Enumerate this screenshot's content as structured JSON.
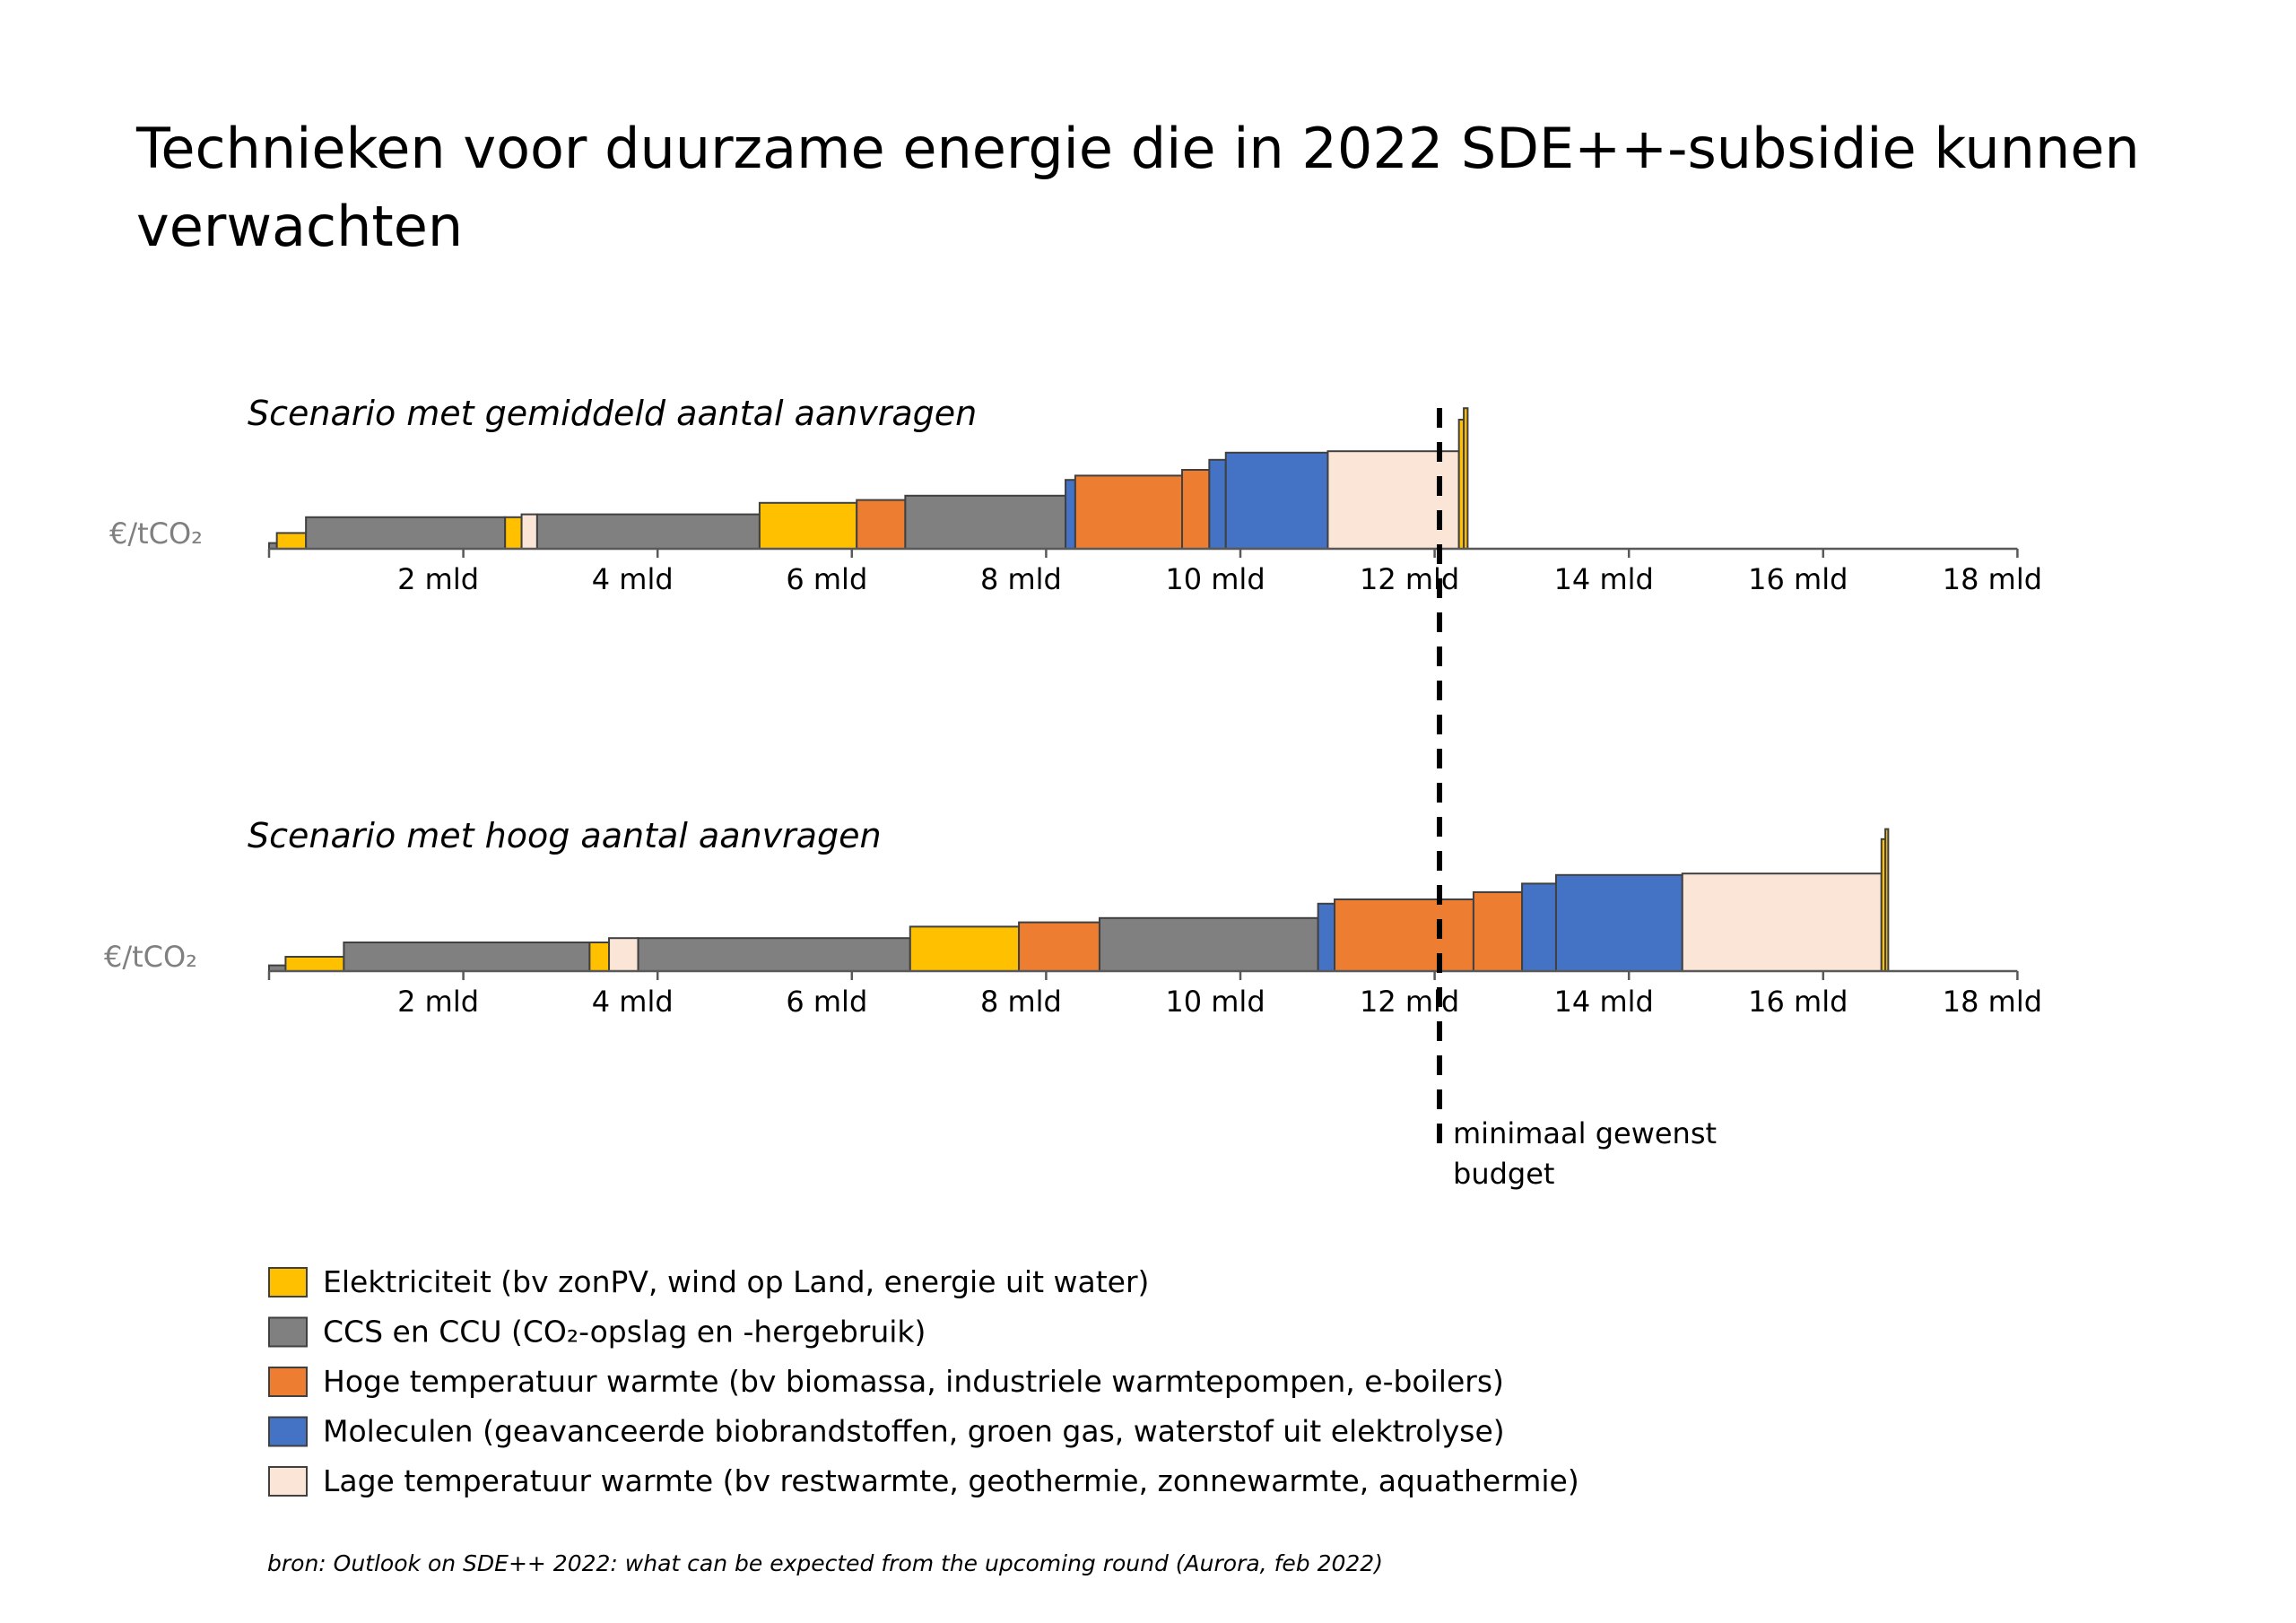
{
  "title": "Technieken voor duurzame energie die in 2022 SDE++-subsidie kunnen verwachten",
  "title_lines": [
    "Technieken voor duurzame energie die in 2022 SDE++-subsidie kunnen",
    "verwachten"
  ],
  "budget_label": [
    "minimaal gewenst",
    "budget"
  ],
  "source": "bron: Outlook on SDE++ 2022: what can be expected from the upcoming round (Aurora, feb 2022)",
  "colors": {
    "elektriciteit": "#FFC000",
    "ccs": "#808080",
    "hoge": "#ED7D31",
    "moleculen": "#4472C4",
    "lage": "#FBE5D6"
  },
  "chart_data": {
    "type": "bar",
    "subtype": "cost-supply-curve",
    "xunit": "mld",
    "xlim": [
      0,
      18
    ],
    "xticks": [
      2,
      4,
      6,
      8,
      10,
      12,
      14,
      16,
      18
    ],
    "xtick_labels": [
      "2 mld",
      "4 mld",
      "6 mld",
      "8 mld",
      "10 mld",
      "12 mld",
      "14 mld",
      "16 mld",
      "18 mld"
    ],
    "ylabel": "€/tCO₂",
    "budget_line_x": 12.05,
    "legend": [
      {
        "key": "elektriciteit",
        "label": "Elektriciteit (bv zonPV, wind op Land, energie uit water)"
      },
      {
        "key": "ccs",
        "label": "CCS en CCU (CO₂-opslag en -hergebruik)"
      },
      {
        "key": "hoge",
        "label": "Hoge temperatuur warmte (bv biomassa, industriele warmtepompen, e-boilers)"
      },
      {
        "key": "moleculen",
        "label": "Moleculen (geavanceerde biobrandstoffen, groen gas, waterstof uit elektrolyse)"
      },
      {
        "key": "lage",
        "label": "Lage temperatuur warmte (bv restwarmte, geothermie, zonnewarmte, aquathermie)"
      }
    ],
    "scenarios": [
      {
        "name": "Scenario met gemiddeld aantal aanvragen",
        "segments": [
          {
            "start": 0.0,
            "end": 0.08,
            "value": 0.04,
            "cat": "ccs"
          },
          {
            "start": 0.08,
            "end": 0.38,
            "value": 0.11,
            "cat": "elektriciteit"
          },
          {
            "start": 0.38,
            "end": 2.43,
            "value": 0.22,
            "cat": "ccs"
          },
          {
            "start": 2.43,
            "end": 2.6,
            "value": 0.22,
            "cat": "elektriciteit"
          },
          {
            "start": 2.6,
            "end": 2.76,
            "value": 0.24,
            "cat": "lage"
          },
          {
            "start": 2.76,
            "end": 5.05,
            "value": 0.24,
            "cat": "ccs"
          },
          {
            "start": 5.05,
            "end": 6.05,
            "value": 0.32,
            "cat": "elektriciteit"
          },
          {
            "start": 6.05,
            "end": 6.55,
            "value": 0.34,
            "cat": "hoge"
          },
          {
            "start": 6.55,
            "end": 8.2,
            "value": 0.37,
            "cat": "ccs"
          },
          {
            "start": 8.2,
            "end": 8.3,
            "value": 0.48,
            "cat": "moleculen"
          },
          {
            "start": 8.3,
            "end": 9.4,
            "value": 0.51,
            "cat": "hoge"
          },
          {
            "start": 9.4,
            "end": 9.68,
            "value": 0.55,
            "cat": "hoge"
          },
          {
            "start": 9.68,
            "end": 9.85,
            "value": 0.62,
            "cat": "moleculen"
          },
          {
            "start": 9.85,
            "end": 10.9,
            "value": 0.67,
            "cat": "moleculen"
          },
          {
            "start": 10.9,
            "end": 12.25,
            "value": 0.68,
            "cat": "lage"
          },
          {
            "start": 12.25,
            "end": 12.3,
            "value": 0.9,
            "cat": "elektriciteit"
          },
          {
            "start": 12.3,
            "end": 12.34,
            "value": 0.98,
            "cat": "elektriciteit"
          }
        ]
      },
      {
        "name": "Scenario met hoog aantal aanvragen",
        "segments": [
          {
            "start": 0.0,
            "end": 0.17,
            "value": 0.04,
            "cat": "ccs"
          },
          {
            "start": 0.17,
            "end": 0.77,
            "value": 0.1,
            "cat": "elektriciteit"
          },
          {
            "start": 0.77,
            "end": 3.3,
            "value": 0.2,
            "cat": "ccs"
          },
          {
            "start": 3.3,
            "end": 3.5,
            "value": 0.2,
            "cat": "elektriciteit"
          },
          {
            "start": 3.5,
            "end": 3.8,
            "value": 0.23,
            "cat": "lage"
          },
          {
            "start": 3.8,
            "end": 6.6,
            "value": 0.23,
            "cat": "ccs"
          },
          {
            "start": 6.6,
            "end": 7.72,
            "value": 0.31,
            "cat": "elektriciteit"
          },
          {
            "start": 7.72,
            "end": 8.55,
            "value": 0.34,
            "cat": "hoge"
          },
          {
            "start": 8.55,
            "end": 10.8,
            "value": 0.37,
            "cat": "ccs"
          },
          {
            "start": 10.8,
            "end": 10.97,
            "value": 0.47,
            "cat": "moleculen"
          },
          {
            "start": 10.97,
            "end": 12.4,
            "value": 0.5,
            "cat": "hoge"
          },
          {
            "start": 12.4,
            "end": 12.9,
            "value": 0.55,
            "cat": "hoge"
          },
          {
            "start": 12.9,
            "end": 13.25,
            "value": 0.61,
            "cat": "moleculen"
          },
          {
            "start": 13.25,
            "end": 14.55,
            "value": 0.67,
            "cat": "moleculen"
          },
          {
            "start": 14.55,
            "end": 16.6,
            "value": 0.68,
            "cat": "lage"
          },
          {
            "start": 16.6,
            "end": 16.64,
            "value": 0.92,
            "cat": "elektriciteit"
          },
          {
            "start": 16.64,
            "end": 16.67,
            "value": 0.99,
            "cat": "elektriciteit"
          }
        ]
      }
    ]
  }
}
